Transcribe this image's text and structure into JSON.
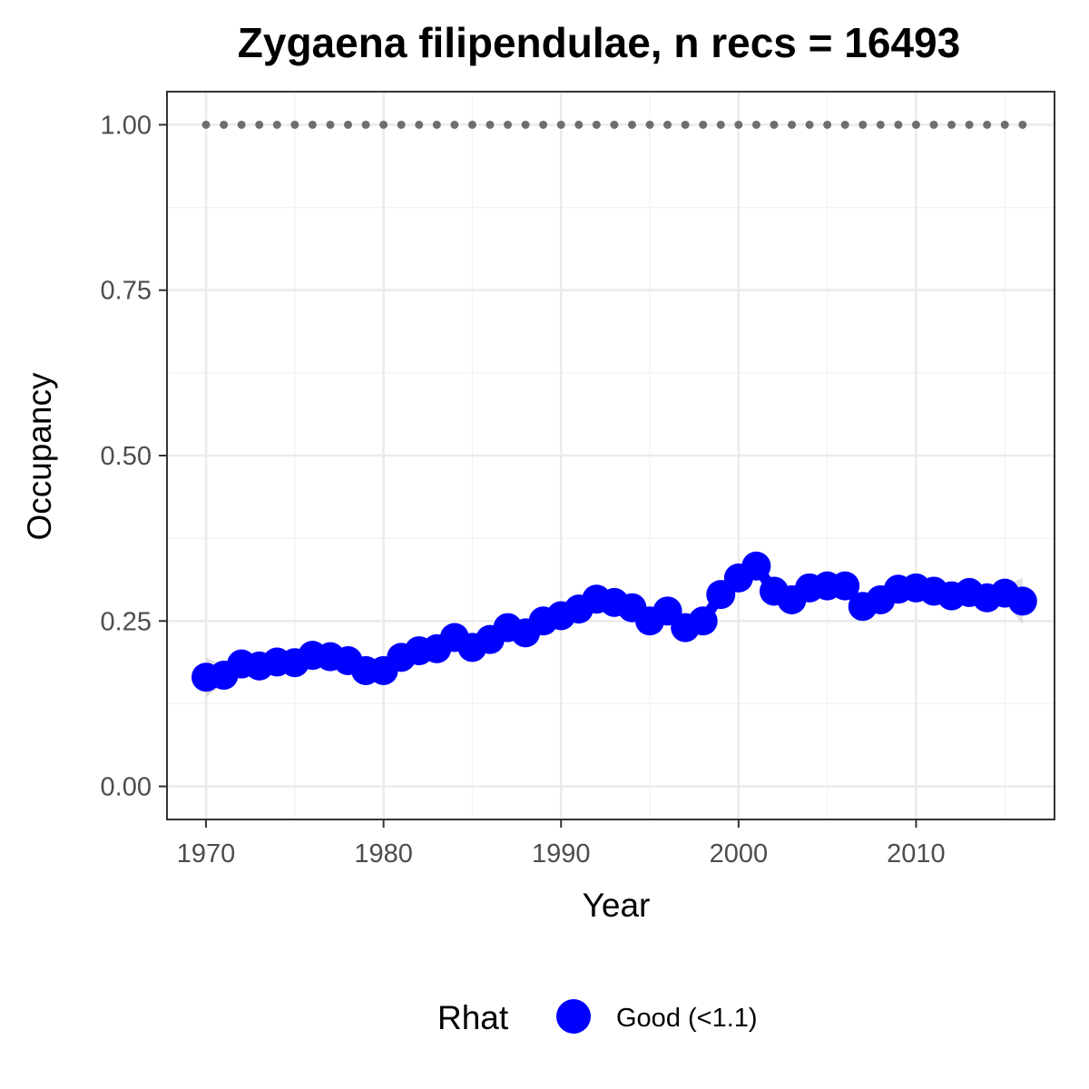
{
  "chart_data": {
    "type": "line",
    "title": "Zygaena filipendulae, n recs = 16493",
    "xlabel": "Year",
    "ylabel": "Occupancy",
    "xlim": [
      1967.8,
      2017.8
    ],
    "ylim": [
      -0.05,
      1.05
    ],
    "x_ticks": [
      1970,
      1980,
      1990,
      2000,
      2010
    ],
    "x_tick_labels": [
      "1970",
      "1980",
      "1990",
      "2000",
      "2010"
    ],
    "y_ticks": [
      0,
      0.25,
      0.5,
      0.75,
      1.0
    ],
    "y_tick_labels": [
      "0.00",
      "0.25",
      "0.50",
      "0.75",
      "1.00"
    ],
    "grid": true,
    "legend_position": "bottom",
    "legend": {
      "title": "Rhat",
      "entries": [
        {
          "label": "Good (<1.1)",
          "color": "#0000ff"
        }
      ]
    },
    "colors": {
      "series": "#0000ff",
      "ribbon": "#c8c8c8",
      "reference": "#6e6e6e"
    },
    "x": [
      1970,
      1971,
      1972,
      1973,
      1974,
      1975,
      1976,
      1977,
      1978,
      1979,
      1980,
      1981,
      1982,
      1983,
      1984,
      1985,
      1986,
      1987,
      1988,
      1989,
      1990,
      1991,
      1992,
      1993,
      1994,
      1995,
      1996,
      1997,
      1998,
      1999,
      2000,
      2001,
      2002,
      2003,
      2004,
      2005,
      2006,
      2007,
      2008,
      2009,
      2010,
      2011,
      2012,
      2013,
      2014,
      2015,
      2016
    ],
    "series": [
      {
        "values": [
          0.165,
          0.168,
          0.185,
          0.182,
          0.188,
          0.187,
          0.198,
          0.196,
          0.19,
          0.175,
          0.175,
          0.195,
          0.205,
          0.208,
          0.225,
          0.21,
          0.222,
          0.24,
          0.232,
          0.25,
          0.258,
          0.268,
          0.283,
          0.278,
          0.27,
          0.25,
          0.265,
          0.24,
          0.25,
          0.29,
          0.315,
          0.333,
          0.295,
          0.282,
          0.3,
          0.303,
          0.303,
          0.272,
          0.282,
          0.298,
          0.3,
          0.295,
          0.288,
          0.293,
          0.285,
          0.292,
          0.28
        ],
        "lower": [
          0.135,
          0.155,
          0.172,
          0.17,
          0.176,
          0.175,
          0.186,
          0.184,
          0.178,
          0.163,
          0.163,
          0.183,
          0.193,
          0.196,
          0.213,
          0.198,
          0.21,
          0.228,
          0.22,
          0.238,
          0.246,
          0.256,
          0.271,
          0.266,
          0.258,
          0.238,
          0.253,
          0.228,
          0.238,
          0.278,
          0.303,
          0.321,
          0.283,
          0.27,
          0.288,
          0.291,
          0.291,
          0.26,
          0.27,
          0.286,
          0.288,
          0.283,
          0.276,
          0.281,
          0.273,
          0.28,
          0.245
        ],
        "upper": [
          0.195,
          0.181,
          0.198,
          0.194,
          0.2,
          0.199,
          0.21,
          0.208,
          0.202,
          0.187,
          0.187,
          0.207,
          0.217,
          0.22,
          0.237,
          0.222,
          0.234,
          0.252,
          0.244,
          0.262,
          0.27,
          0.28,
          0.295,
          0.29,
          0.282,
          0.262,
          0.277,
          0.252,
          0.262,
          0.302,
          0.327,
          0.345,
          0.307,
          0.294,
          0.312,
          0.315,
          0.315,
          0.284,
          0.294,
          0.31,
          0.312,
          0.307,
          0.3,
          0.305,
          0.297,
          0.304,
          0.315
        ]
      }
    ],
    "reference_line": {
      "y": 1.0,
      "style": "dotted"
    }
  }
}
